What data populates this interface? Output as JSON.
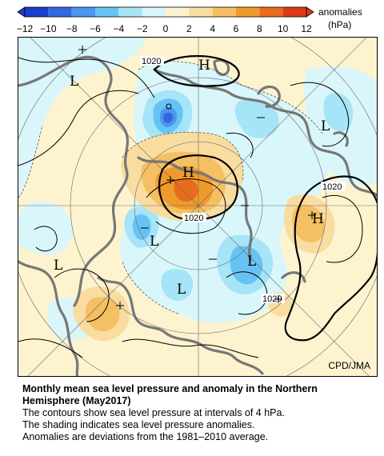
{
  "colorbar": {
    "unit_label": "anomalies",
    "unit_sub": "(hPa)",
    "ticks": [
      "−12",
      "−10",
      "−8",
      "−6",
      "−4",
      "−2",
      "0",
      "2",
      "4",
      "6",
      "8",
      "10",
      "12"
    ],
    "colors": [
      "#1a3fcf",
      "#2f68e0",
      "#4d95ef",
      "#67c3f4",
      "#a6e4f8",
      "#d9f6fb",
      "#fdf3cf",
      "#f9dc9f",
      "#f5bf63",
      "#ef9a2c",
      "#e86b1e",
      "#db3b17"
    ]
  },
  "map": {
    "pressure_labels": [
      "1020",
      "1020",
      "1020",
      "1020"
    ],
    "centers": [
      "L",
      "L",
      "L",
      "L",
      "L",
      "L",
      "H",
      "H",
      "H"
    ],
    "credit": "CPD/JMA"
  },
  "caption": {
    "title_line1": "Monthly mean sea level pressure and anomaly in the Northern",
    "title_line2": "Hemisphere (May2017)",
    "line1": "The contours show sea level pressure at intervals of 4 hPa.",
    "line2": "The shading indicates sea level pressure anomalies.",
    "line3": "Anomalies are deviations from the 1981–2010 average."
  }
}
